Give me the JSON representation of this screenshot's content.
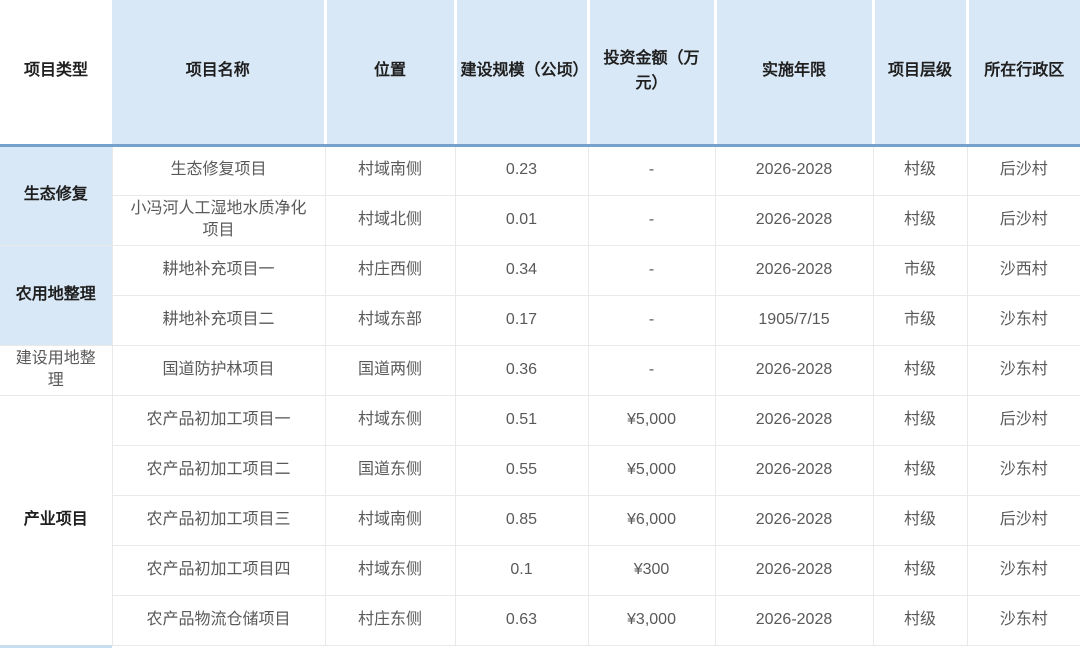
{
  "colors": {
    "header_bg": "#d9e8f6",
    "header_divider": "#ffffff",
    "header_underline": "#74a2cc",
    "group_blue_bg": "#d9e8f6",
    "grid_line": "#e9e9e9",
    "header_text": "#1f1f1f",
    "body_text": "#595959",
    "bottom_strip": "#c8ddee"
  },
  "table": {
    "columns": [
      {
        "key": "project-type",
        "label": "项目类型"
      },
      {
        "key": "project-name",
        "label": "项目名称"
      },
      {
        "key": "location",
        "label": "位置"
      },
      {
        "key": "scale",
        "label": "建设规模（公顷）"
      },
      {
        "key": "investment",
        "label": "投资金额（万元）"
      },
      {
        "key": "years",
        "label": "实施年限"
      },
      {
        "key": "level",
        "label": "项目层级"
      },
      {
        "key": "district",
        "label": "所在行政区"
      }
    ],
    "groups": [
      {
        "type_label": "生态修复",
        "emphasis": "bold-blue",
        "rows": [
          [
            "生态修复项目",
            "村域南侧",
            "0.23",
            "-",
            "2026-2028",
            "村级",
            "后沙村"
          ],
          [
            "小冯河人工湿地水质净化项目",
            "村域北侧",
            "0.01",
            "-",
            "2026-2028",
            "村级",
            "后沙村"
          ]
        ]
      },
      {
        "type_label": "农用地整理",
        "emphasis": "bold-blue",
        "rows": [
          [
            "耕地补充项目一",
            "村庄西侧",
            "0.34",
            "-",
            "2026-2028",
            "市级",
            "沙西村"
          ],
          [
            "耕地补充项目二",
            "村域东部",
            "0.17",
            "-",
            "1905/7/15",
            "市级",
            "沙东村"
          ]
        ]
      },
      {
        "type_label": "建设用地整理",
        "emphasis": "plain-white",
        "rows": [
          [
            "国道防护林项目",
            "国道两侧",
            "0.36",
            "-",
            "2026-2028",
            "村级",
            "沙东村"
          ]
        ]
      },
      {
        "type_label": "产业项目",
        "emphasis": "bold-white",
        "rows": [
          [
            "农产品初加工项目一",
            "村域东侧",
            "0.51",
            "¥5,000",
            "2026-2028",
            "村级",
            "后沙村"
          ],
          [
            "农产品初加工项目二",
            "国道东侧",
            "0.55",
            "¥5,000",
            "2026-2028",
            "村级",
            "沙东村"
          ],
          [
            "农产品初加工项目三",
            "村域南侧",
            "0.85",
            "¥6,000",
            "2026-2028",
            "村级",
            "后沙村"
          ],
          [
            "农产品初加工项目四",
            "村域东侧",
            "0.1",
            "¥300",
            "2026-2028",
            "村级",
            "沙东村"
          ],
          [
            "农产品物流仓储项目",
            "村庄东侧",
            "0.63",
            "¥3,000",
            "2026-2028",
            "村级",
            "沙东村"
          ]
        ]
      }
    ]
  }
}
